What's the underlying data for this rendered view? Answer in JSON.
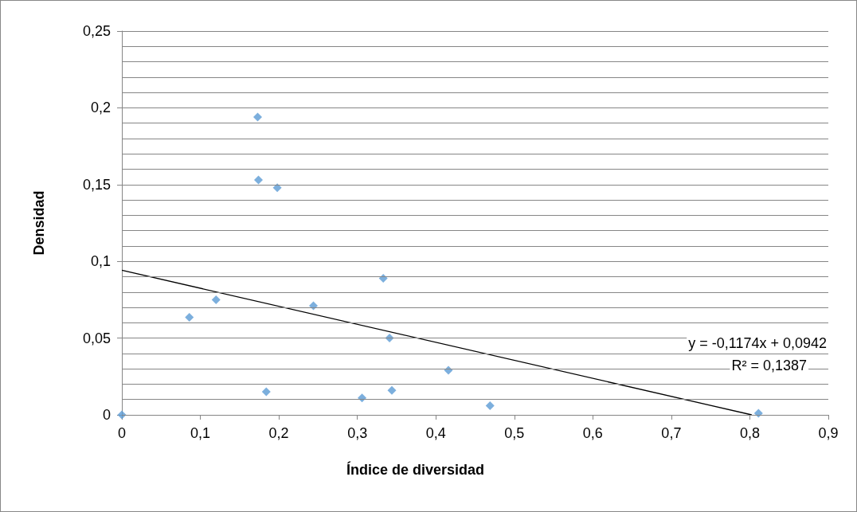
{
  "chart_data": {
    "type": "scatter",
    "xlabel": "Índice de diversidad",
    "ylabel": "Densidad",
    "xlim": [
      0,
      0.9
    ],
    "ylim": [
      0,
      0.25
    ],
    "xticks": [
      0,
      {
        "value": 0.1,
        "label": "0,1"
      },
      {
        "value": 0.2,
        "label": "0,2"
      },
      {
        "value": 0.3,
        "label": "0,3"
      },
      {
        "value": 0.4,
        "label": "0,4"
      },
      {
        "value": 0.5,
        "label": "0,5"
      },
      {
        "value": 0.6,
        "label": "0,6"
      },
      {
        "value": 0.7,
        "label": "0,7"
      },
      {
        "value": 0.8,
        "label": "0,8"
      },
      {
        "value": 0.9,
        "label": "0,9"
      }
    ],
    "yticks": [
      0,
      {
        "value": 0.01,
        "label": null
      },
      {
        "value": 0.02,
        "label": null
      },
      {
        "value": 0.03,
        "label": null
      },
      {
        "value": 0.04,
        "label": null
      },
      {
        "value": 0.05,
        "label": "0,05"
      },
      {
        "value": 0.06,
        "label": null
      },
      {
        "value": 0.07,
        "label": null
      },
      {
        "value": 0.08,
        "label": null
      },
      {
        "value": 0.09,
        "label": null
      },
      {
        "value": 0.1,
        "label": "0,1"
      },
      {
        "value": 0.11,
        "label": null
      },
      {
        "value": 0.12,
        "label": null
      },
      {
        "value": 0.13,
        "label": null
      },
      {
        "value": 0.14,
        "label": null
      },
      {
        "value": 0.15,
        "label": "0,15"
      },
      {
        "value": 0.16,
        "label": null
      },
      {
        "value": 0.17,
        "label": null
      },
      {
        "value": 0.18,
        "label": null
      },
      {
        "value": 0.19,
        "label": null
      },
      {
        "value": 0.2,
        "label": "0,2"
      },
      {
        "value": 0.21,
        "label": null
      },
      {
        "value": 0.22,
        "label": null
      },
      {
        "value": 0.23,
        "label": null
      },
      {
        "value": 0.24,
        "label": null
      },
      {
        "value": 0.25,
        "label": "0,25"
      }
    ],
    "grid": "y",
    "marker": "diamond",
    "series": [
      {
        "color": "#5b9bd5",
        "x": [
          0,
          0.086,
          0.12,
          0.173,
          0.174,
          0.198,
          0.184,
          0.244,
          0.333,
          0.341,
          0.306,
          0.344,
          0.416,
          0.469,
          0.811
        ],
        "values": [
          0,
          0.0635,
          0.075,
          0.194,
          0.153,
          0.148,
          0.015,
          0.071,
          0.089,
          0.05,
          0.011,
          0.016,
          0.029,
          0.006,
          0.001
        ]
      },
      {
        "type": "line",
        "color": "#000000",
        "marker": "none",
        "x": [
          0,
          0.8024
        ],
        "values": [
          0.0942,
          0
        ]
      }
    ],
    "annotations": [
      "y = -0,1174x + 0,0942",
      "R² = 0,1387"
    ]
  }
}
